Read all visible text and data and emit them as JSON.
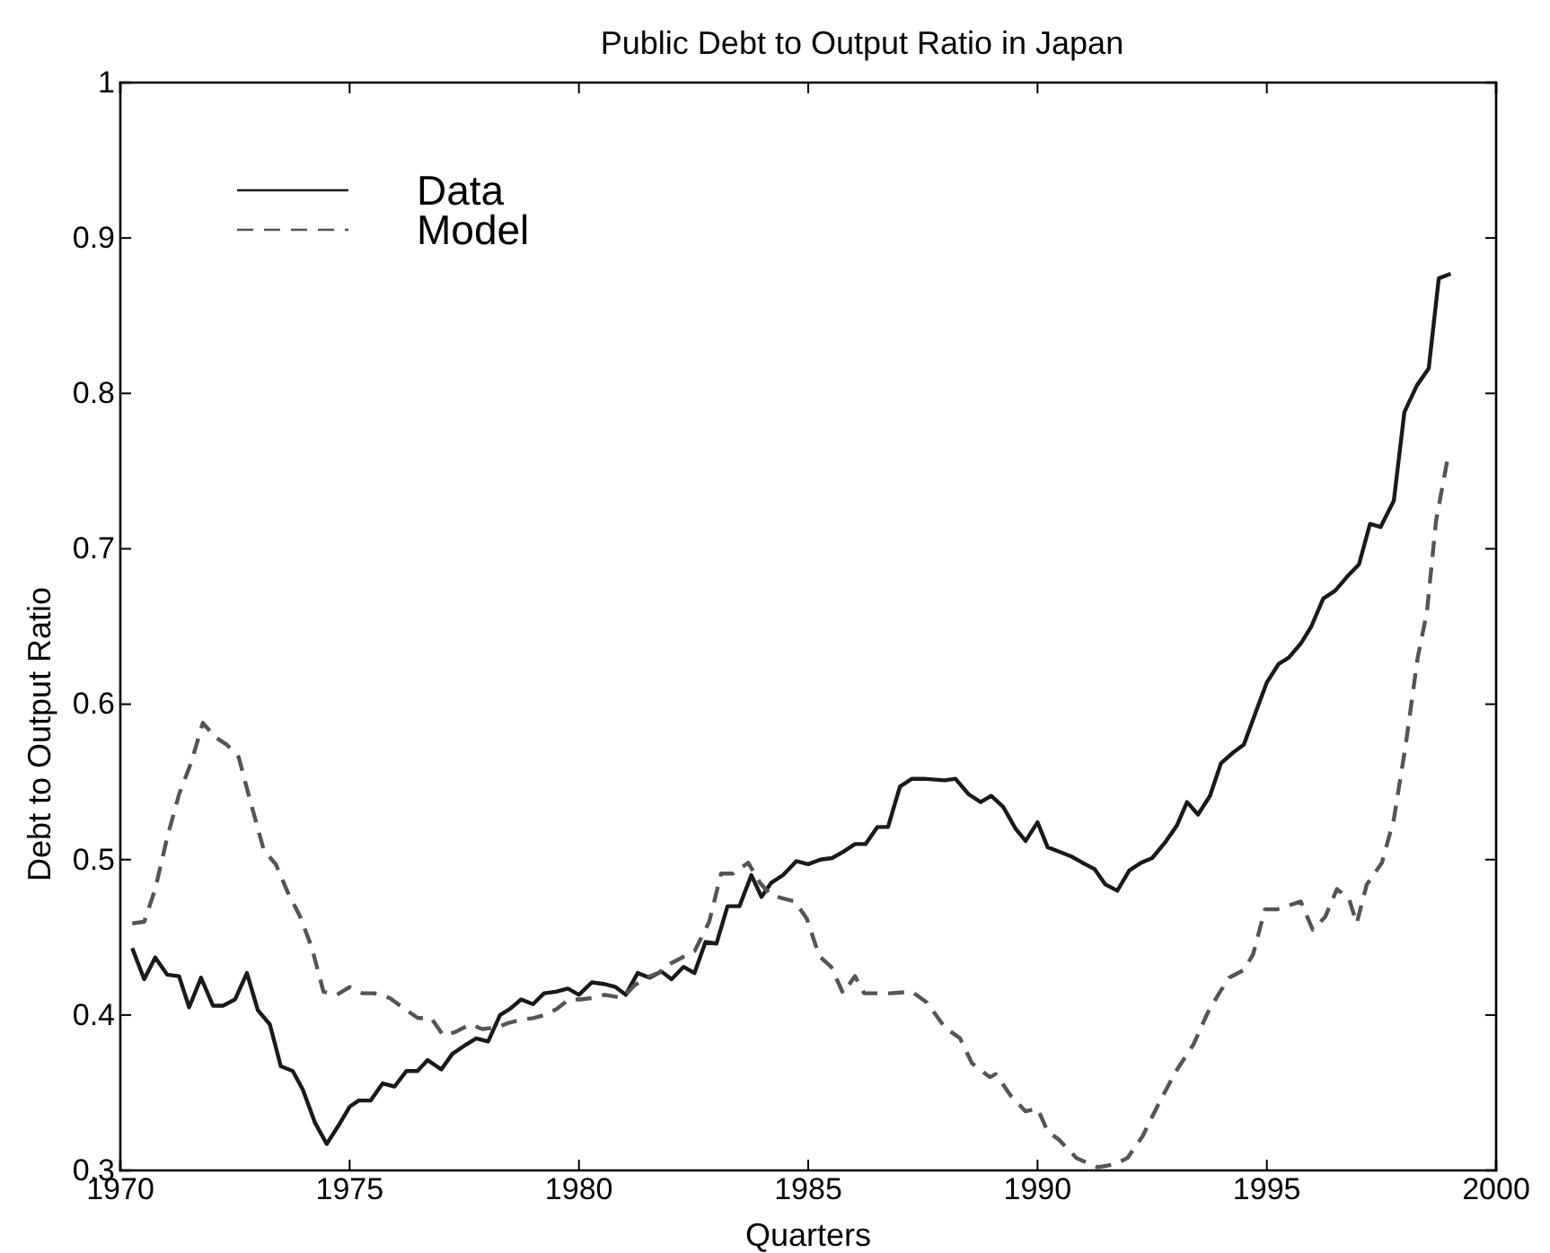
{
  "chart_data": {
    "type": "line",
    "title": "Public Debt to Output Ratio in Japan",
    "xlabel": "Quarters",
    "ylabel": "Debt to Output Ratio",
    "xlim": [
      1970,
      2000
    ],
    "xticks": [
      1970,
      1975,
      1980,
      1985,
      1990,
      1995,
      2000
    ],
    "ylim": [
      0.3,
      1
    ],
    "yticks": [
      0.3,
      0.4,
      0.5,
      0.6,
      0.7,
      0.8,
      0.9,
      1
    ],
    "grid": false,
    "legend": "top left",
    "marker": "none",
    "series": [
      {
        "name": "Data",
        "color": "#1a1a1a",
        "line_style": "solid",
        "x": [
          1970.26,
          1970.52,
          1970.76,
          1971.02,
          1971.28,
          1971.5,
          1971.76,
          1972.02,
          1972.24,
          1972.5,
          1972.76,
          1973,
          1973.26,
          1973.5,
          1973.76,
          1973.98,
          1974.24,
          1974.5,
          1974.76,
          1975,
          1975.2,
          1975.46,
          1975.72,
          1975.98,
          1976.24,
          1976.48,
          1976.7,
          1977,
          1977.24,
          1977.54,
          1977.76,
          1978.02,
          1978.28,
          1978.5,
          1978.74,
          1979,
          1979.24,
          1979.5,
          1979.76,
          1980,
          1980.28,
          1980.54,
          1980.8,
          1981.02,
          1981.28,
          1981.54,
          1981.8,
          1982.02,
          1982.28,
          1982.52,
          1982.76,
          1983,
          1983.24,
          1983.5,
          1983.76,
          1983.98,
          1984.19,
          1984.45,
          1984.74,
          1985,
          1985.26,
          1985.52,
          1985.76,
          1986.02,
          1986.25,
          1986.51,
          1986.74,
          1987,
          1987.26,
          1987.52,
          1987.98,
          1988.21,
          1988.5,
          1988.76,
          1988.99,
          1989.25,
          1989.52,
          1989.74,
          1990,
          1990.22,
          1990.48,
          1990.74,
          1990.98,
          1991.24,
          1991.48,
          1991.74,
          1992,
          1992.26,
          1992.5,
          1992.78,
          1993.04,
          1993.26,
          1993.5,
          1993.76,
          1994,
          1994.27,
          1994.5,
          1994.76,
          1995,
          1995.26,
          1995.48,
          1995.74,
          1995.97,
          1996.23,
          1996.49,
          1996.75,
          1997.01,
          1997.25,
          1997.48,
          1997.77,
          1998,
          1998.27,
          1998.53,
          1998.75,
          1999.01
        ],
        "values": [
          0.443,
          0.423,
          0.437,
          0.426,
          0.425,
          0.405,
          0.424,
          0.406,
          0.406,
          0.41,
          0.427,
          0.403,
          0.394,
          0.367,
          0.364,
          0.352,
          0.331,
          0.317,
          0.329,
          0.341,
          0.345,
          0.345,
          0.356,
          0.354,
          0.364,
          0.364,
          0.371,
          0.365,
          0.375,
          0.381,
          0.385,
          0.383,
          0.4,
          0.404,
          0.41,
          0.407,
          0.414,
          0.415,
          0.417,
          0.413,
          0.421,
          0.42,
          0.418,
          0.413,
          0.427,
          0.424,
          0.428,
          0.423,
          0.431,
          0.427,
          0.447,
          0.446,
          0.47,
          0.47,
          0.49,
          0.476,
          0.485,
          0.49,
          0.499,
          0.497,
          0.5,
          0.501,
          0.505,
          0.51,
          0.51,
          0.521,
          0.521,
          0.547,
          0.552,
          0.552,
          0.551,
          0.552,
          0.542,
          0.537,
          0.541,
          0.534,
          0.52,
          0.512,
          0.524,
          0.508,
          0.505,
          0.502,
          0.498,
          0.494,
          0.484,
          0.48,
          0.493,
          0.498,
          0.501,
          0.511,
          0.522,
          0.537,
          0.529,
          0.541,
          0.562,
          0.569,
          0.574,
          0.595,
          0.614,
          0.626,
          0.63,
          0.639,
          0.65,
          0.668,
          0.673,
          0.682,
          0.69,
          0.716,
          0.714,
          0.731,
          0.788,
          0.805,
          0.816,
          0.874,
          0.877
        ]
      },
      {
        "name": "Model",
        "color": "#555555",
        "line_style": "dashed",
        "x": [
          1970.26,
          1970.52,
          1970.76,
          1971.02,
          1971.28,
          1971.54,
          1971.8,
          1972.06,
          1972.32,
          1972.58,
          1972.84,
          1973.13,
          1973.39,
          1973.65,
          1973.91,
          1974.17,
          1974.43,
          1974.72,
          1975,
          1975.28,
          1975.54,
          1975.87,
          1976.15,
          1976.49,
          1976.78,
          1977.04,
          1977.3,
          1977.63,
          1977.89,
          1978.21,
          1978.47,
          1978.74,
          1979,
          1979.26,
          1979.52,
          1979.78,
          1980.04,
          1980.3,
          1980.56,
          1980.95,
          1981.21,
          1981.47,
          1981.73,
          1981.99,
          1982.25,
          1982.52,
          1982.84,
          1983.1,
          1983.36,
          1983.69,
          1983.95,
          1984.19,
          1984.71,
          1984.97,
          1985.24,
          1985.5,
          1985.76,
          1986.02,
          1986.22,
          1986.8,
          1987.26,
          1987.59,
          1987.98,
          1988.31,
          1988.57,
          1988.96,
          1989.09,
          1989.42,
          1989.74,
          1990,
          1990.22,
          1990.46,
          1990.85,
          1991.31,
          1991.7,
          1991.96,
          1992.29,
          1992.61,
          1993,
          1993.4,
          1993.72,
          1993.96,
          1994.18,
          1994.5,
          1994.7,
          1994.96,
          1995.22,
          1995.74,
          1996,
          1996.27,
          1996.53,
          1996.79,
          1996.96,
          1997.18,
          1997.51,
          1997.77,
          1998.03,
          1998.29,
          1998.49,
          1998.69,
          1998.93
        ],
        "values": [
          0.459,
          0.46,
          0.481,
          0.514,
          0.542,
          0.562,
          0.588,
          0.579,
          0.574,
          0.566,
          0.537,
          0.506,
          0.497,
          0.479,
          0.464,
          0.444,
          0.415,
          0.413,
          0.418,
          0.414,
          0.414,
          0.411,
          0.405,
          0.398,
          0.398,
          0.387,
          0.389,
          0.394,
          0.391,
          0.392,
          0.395,
          0.397,
          0.398,
          0.4,
          0.404,
          0.41,
          0.41,
          0.411,
          0.413,
          0.411,
          0.419,
          0.424,
          0.427,
          0.433,
          0.437,
          0.441,
          0.46,
          0.491,
          0.491,
          0.498,
          0.485,
          0.477,
          0.473,
          0.462,
          0.438,
          0.431,
          0.414,
          0.425,
          0.414,
          0.414,
          0.415,
          0.408,
          0.392,
          0.385,
          0.369,
          0.36,
          0.362,
          0.348,
          0.338,
          0.34,
          0.325,
          0.32,
          0.308,
          0.302,
          0.304,
          0.308,
          0.322,
          0.341,
          0.363,
          0.381,
          0.402,
          0.414,
          0.424,
          0.429,
          0.439,
          0.468,
          0.468,
          0.473,
          0.455,
          0.463,
          0.481,
          0.475,
          0.459,
          0.484,
          0.498,
          0.526,
          0.574,
          0.63,
          0.659,
          0.718,
          0.756
        ]
      }
    ]
  }
}
